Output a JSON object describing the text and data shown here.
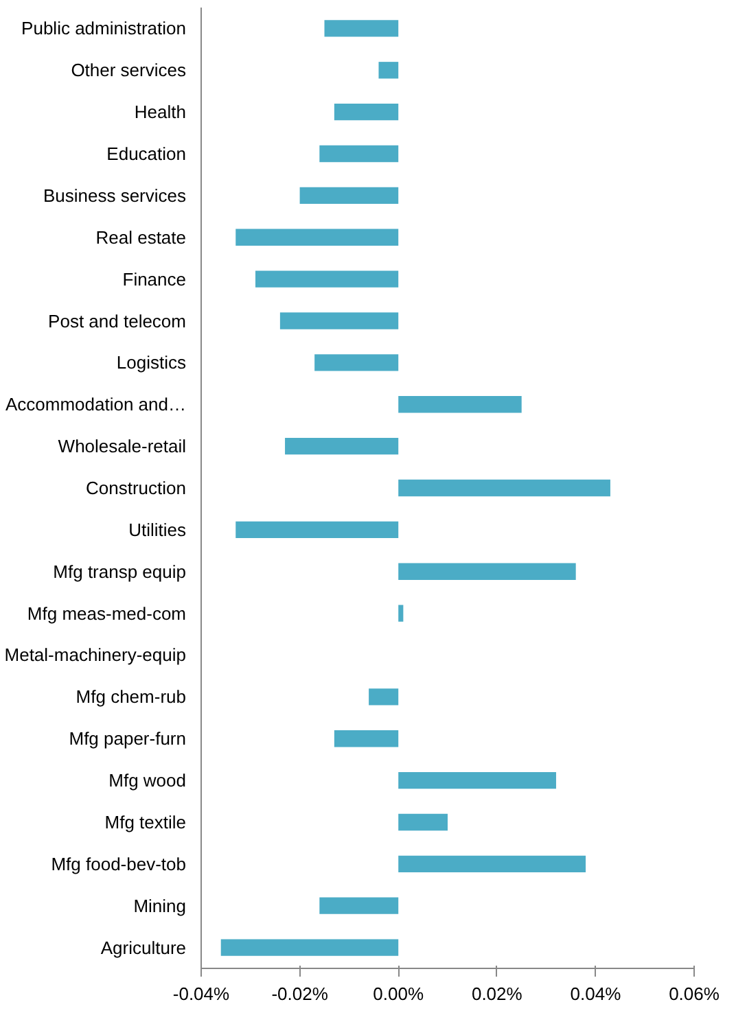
{
  "chart_data": {
    "type": "bar",
    "orientation": "horizontal",
    "categories": [
      "Public administration",
      "Other services",
      "Health",
      "Education",
      "Business services",
      "Real estate",
      "Finance",
      "Post and telecom",
      "Logistics",
      "Accommodation and…",
      "Wholesale-retail",
      "Construction",
      "Utilities",
      "Mfg transp equip",
      "Mfg meas-med-com",
      "Metal-machinery-equip",
      "Mfg chem-rub",
      "Mfg paper-furn",
      "Mfg wood",
      "Mfg textile",
      "Mfg food-bev-tob",
      "Mining",
      "Agriculture"
    ],
    "values": [
      -0.015,
      -0.004,
      -0.013,
      -0.016,
      -0.02,
      -0.033,
      -0.029,
      -0.024,
      -0.017,
      0.025,
      -0.023,
      0.043,
      -0.033,
      0.036,
      0.001,
      0,
      -0.006,
      -0.013,
      0.032,
      0.01,
      0.038,
      -0.016,
      -0.036
    ],
    "color": "#4bacc6",
    "xlim": [
      -0.04,
      0.06
    ],
    "xticks": [
      {
        "value": -0.04,
        "label": "-0.04%"
      },
      {
        "value": -0.02,
        "label": "-0.02%"
      },
      {
        "value": 0,
        "label": "0.00%"
      },
      {
        "value": 0.02,
        "label": "0.02%"
      },
      {
        "value": 0.04,
        "label": "0.04%"
      },
      {
        "value": 0.06,
        "label": "0.06%"
      }
    ],
    "grid": false
  }
}
